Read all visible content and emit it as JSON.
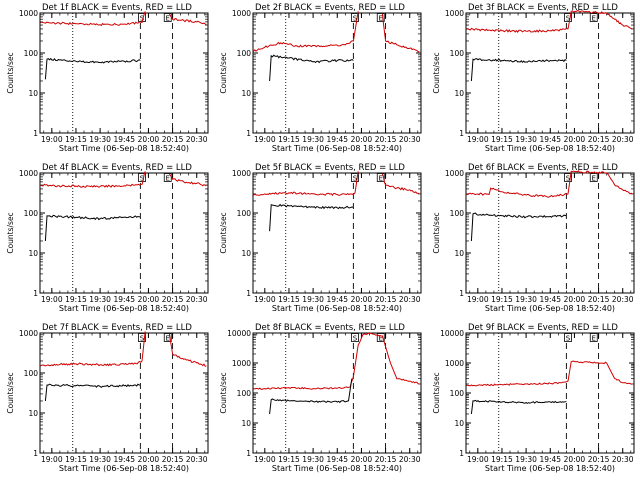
{
  "chart_data": [
    {
      "type": "line",
      "title": "Det 1f BLACK = Events, RED = LLD",
      "xlabel": "Start Time (06-Sep-08 18:52:40)",
      "ylabel": "Counts/sec",
      "scale": "log",
      "ylim": [
        1,
        1000
      ],
      "yticks": [
        "1",
        "10",
        "100",
        "1000"
      ],
      "xlim": [
        "18:52:40",
        "20:37:00"
      ],
      "xticks": [
        "19:00",
        "19:15",
        "19:30",
        "19:45",
        "20:00",
        "20:15",
        "20:30"
      ],
      "markers": [
        "S",
        "E"
      ],
      "series": [
        {
          "name": "LLD",
          "color": "#d00000",
          "x": [
            "18:53",
            "19:00",
            "19:15",
            "19:30",
            "19:45",
            "19:53",
            "19:56",
            "19:58",
            "20:01",
            "20:11",
            "20:13",
            "20:15",
            "20:22",
            "20:30",
            "20:36"
          ],
          "y": [
            580,
            560,
            540,
            510,
            530,
            560,
            580,
            1100,
            null,
            null,
            950,
            700,
            650,
            600,
            520
          ]
        },
        {
          "name": "Events",
          "color": "#000000",
          "x": [
            "18:56",
            "18:57",
            "19:15",
            "19:30",
            "19:45",
            "19:55"
          ],
          "y": [
            22,
            70,
            62,
            58,
            62,
            65
          ]
        }
      ]
    },
    {
      "type": "line",
      "title": "Det 2f BLACK = Events, RED = LLD",
      "xlabel": "Start Time (06-Sep-08 18:52:40)",
      "ylabel": "Counts/sec",
      "scale": "log",
      "ylim": [
        1,
        1000
      ],
      "yticks": [
        "1",
        "10",
        "100",
        "1000"
      ],
      "xlim": [
        "18:52:40",
        "20:37:00"
      ],
      "xticks": [
        "19:00",
        "19:15",
        "19:30",
        "19:45",
        "20:00",
        "20:15",
        "20:30"
      ],
      "markers": [
        "S",
        "E"
      ],
      "series": [
        {
          "name": "LLD",
          "color": "#d00000",
          "x": [
            "18:53",
            "19:00",
            "19:10",
            "19:20",
            "19:35",
            "19:50",
            "19:55",
            "19:58",
            "20:01",
            "20:11",
            "20:13",
            "20:15",
            "20:22",
            "20:30",
            "20:36"
          ],
          "y": [
            110,
            140,
            180,
            150,
            150,
            160,
            200,
            1100,
            null,
            null,
            950,
            200,
            160,
            130,
            110
          ]
        },
        {
          "name": "Events",
          "color": "#000000",
          "x": [
            "19:03",
            "19:04",
            "19:15",
            "19:30",
            "19:45",
            "19:55"
          ],
          "y": [
            20,
            85,
            75,
            60,
            65,
            65
          ]
        }
      ]
    },
    {
      "type": "line",
      "title": "Det 3f BLACK = Events, RED = LLD",
      "xlabel": "Start Time (06-Sep-08 18:52:40)",
      "ylabel": "Counts/sec",
      "scale": "log",
      "ylim": [
        1,
        1000
      ],
      "yticks": [
        "1",
        "10",
        "100",
        "1000"
      ],
      "xlim": [
        "18:52:40",
        "20:37:00"
      ],
      "xticks": [
        "19:00",
        "19:15",
        "19:30",
        "19:45",
        "20:00",
        "20:15",
        "20:30"
      ],
      "markers": [
        "S",
        "E"
      ],
      "series": [
        {
          "name": "LLD",
          "color": "#d00000",
          "x": [
            "18:53",
            "19:00",
            "19:15",
            "19:30",
            "19:45",
            "19:52",
            "19:56",
            "19:58",
            "20:20",
            "20:25",
            "20:30",
            "20:36"
          ],
          "y": [
            400,
            380,
            360,
            350,
            360,
            380,
            400,
            1100,
            1000,
            700,
            500,
            400
          ]
        },
        {
          "name": "Events",
          "color": "#000000",
          "x": [
            "18:56",
            "18:57",
            "19:15",
            "19:30",
            "19:45",
            "19:55"
          ],
          "y": [
            20,
            70,
            65,
            60,
            65,
            65
          ]
        }
      ]
    },
    {
      "type": "line",
      "title": "Det 4f BLACK = Events, RED = LLD",
      "xlabel": "Start Time (06-Sep-08 18:52:40)",
      "ylabel": "Counts/sec",
      "scale": "log",
      "ylim": [
        1,
        1000
      ],
      "yticks": [
        "1",
        "10",
        "100",
        "1000"
      ],
      "xlim": [
        "18:52:40",
        "20:37:00"
      ],
      "xticks": [
        "19:00",
        "19:15",
        "19:30",
        "19:45",
        "20:00",
        "20:15",
        "20:30"
      ],
      "markers": [
        "S",
        "E"
      ],
      "series": [
        {
          "name": "LLD",
          "color": "#d00000",
          "x": [
            "18:53",
            "19:00",
            "19:15",
            "19:30",
            "19:45",
            "19:53",
            "19:56",
            "19:58",
            "20:01",
            "20:11",
            "20:13",
            "20:15",
            "20:22",
            "20:30",
            "20:36"
          ],
          "y": [
            500,
            480,
            470,
            460,
            480,
            500,
            520,
            1100,
            null,
            null,
            950,
            700,
            600,
            550,
            480
          ]
        },
        {
          "name": "Events",
          "color": "#000000",
          "x": [
            "18:56",
            "18:57",
            "19:15",
            "19:30",
            "19:45",
            "19:55"
          ],
          "y": [
            20,
            85,
            78,
            72,
            78,
            80
          ]
        }
      ]
    },
    {
      "type": "line",
      "title": "Det 5f BLACK = Events, RED = LLD",
      "xlabel": "Start Time (06-Sep-08 18:52:40)",
      "ylabel": "Counts/sec",
      "scale": "log",
      "ylim": [
        1,
        1000
      ],
      "yticks": [
        "1",
        "10",
        "100",
        "1000"
      ],
      "xlim": [
        "18:52:40",
        "20:37:00"
      ],
      "xticks": [
        "19:00",
        "19:15",
        "19:30",
        "19:45",
        "20:00",
        "20:15",
        "20:30"
      ],
      "markers": [
        "S",
        "E"
      ],
      "series": [
        {
          "name": "LLD",
          "color": "#d00000",
          "x": [
            "18:53",
            "19:00",
            "19:15",
            "19:30",
            "19:45",
            "19:53",
            "19:56",
            "19:58",
            "20:01",
            "20:11",
            "20:13",
            "20:15",
            "20:22",
            "20:30",
            "20:36"
          ],
          "y": [
            280,
            300,
            320,
            300,
            290,
            300,
            320,
            1100,
            null,
            null,
            950,
            500,
            420,
            380,
            300
          ]
        },
        {
          "name": "Events",
          "color": "#000000",
          "x": [
            "19:03",
            "19:04",
            "19:15",
            "19:30",
            "19:45",
            "19:55"
          ],
          "y": [
            35,
            160,
            150,
            140,
            135,
            140
          ]
        }
      ]
    },
    {
      "type": "line",
      "title": "Det 6f BLACK = Events, RED = LLD",
      "xlabel": "Start Time (06-Sep-08 18:52:40)",
      "ylabel": "Counts/sec",
      "scale": "log",
      "ylim": [
        1,
        1000
      ],
      "yticks": [
        "1",
        "10",
        "100",
        "1000"
      ],
      "xlim": [
        "18:52:40",
        "20:37:00"
      ],
      "xticks": [
        "19:00",
        "19:15",
        "19:30",
        "19:45",
        "20:00",
        "20:15",
        "20:30"
      ],
      "markers": [
        "S",
        "E"
      ],
      "series": [
        {
          "name": "LLD",
          "color": "#d00000",
          "x": [
            "18:53",
            "19:00",
            "19:07",
            "19:08",
            "19:15",
            "19:30",
            "19:45",
            "19:52",
            "19:56",
            "19:58",
            "20:20",
            "20:25",
            "20:30",
            "20:36"
          ],
          "y": [
            300,
            300,
            290,
            420,
            340,
            280,
            260,
            280,
            300,
            1100,
            1000,
            500,
            380,
            300
          ]
        },
        {
          "name": "Events",
          "color": "#000000",
          "x": [
            "18:56",
            "18:57",
            "19:15",
            "19:30",
            "19:45",
            "19:55"
          ],
          "y": [
            20,
            95,
            85,
            80,
            82,
            85
          ]
        }
      ]
    },
    {
      "type": "line",
      "title": "Det 7f BLACK = Events, RED = LLD",
      "xlabel": "Start Time (06-Sep-08 18:52:40)",
      "ylabel": "Counts/sec",
      "scale": "log",
      "ylim": [
        1,
        1000
      ],
      "yticks": [
        "1",
        "10",
        "100",
        "1000"
      ],
      "xlim": [
        "18:52:40",
        "20:37:00"
      ],
      "xticks": [
        "19:00",
        "19:15",
        "19:30",
        "19:45",
        "20:00",
        "20:15",
        "20:30"
      ],
      "markers": [
        "S",
        "E"
      ],
      "series": [
        {
          "name": "LLD",
          "color": "#d00000",
          "x": [
            "18:53",
            "19:00",
            "19:15",
            "19:30",
            "19:45",
            "19:53",
            "19:56",
            "19:58",
            "20:01",
            "20:11",
            "20:13",
            "20:15",
            "20:22",
            "20:30",
            "20:36"
          ],
          "y": [
            150,
            160,
            170,
            160,
            165,
            170,
            200,
            1100,
            null,
            null,
            950,
            300,
            220,
            180,
            150
          ]
        },
        {
          "name": "Events",
          "color": "#000000",
          "x": [
            "18:56",
            "18:57",
            "19:15",
            "19:30",
            "19:45",
            "19:55"
          ],
          "y": [
            20,
            50,
            48,
            46,
            48,
            50
          ]
        }
      ]
    },
    {
      "type": "line",
      "title": "Det 8f BLACK = Events, RED = LLD",
      "xlabel": "Start Time (06-Sep-08 18:52:40)",
      "ylabel": "Counts/sec",
      "scale": "log",
      "ylim": [
        1,
        10000
      ],
      "yticks": [
        "1",
        "10",
        "100",
        "1000",
        "10000"
      ],
      "xlim": [
        "18:52:40",
        "20:37:00"
      ],
      "xticks": [
        "19:00",
        "19:15",
        "19:30",
        "19:45",
        "20:00",
        "20:15",
        "20:30"
      ],
      "markers": [
        "S",
        "E"
      ],
      "series": [
        {
          "name": "LLD",
          "color": "#d00000",
          "x": [
            "18:53",
            "19:00",
            "19:15",
            "19:30",
            "19:45",
            "19:53",
            "19:55",
            "19:58",
            "20:01",
            "20:05",
            "20:13",
            "20:18",
            "20:22",
            "20:30",
            "20:36"
          ],
          "y": [
            140,
            140,
            150,
            140,
            145,
            160,
            350,
            4000,
            9000,
            9500,
            8000,
            1000,
            300,
            250,
            200
          ]
        },
        {
          "name": "Events",
          "color": "#000000",
          "x": [
            "19:03",
            "19:04",
            "19:15",
            "19:30",
            "19:45",
            "19:52",
            "19:54"
          ],
          "y": [
            20,
            60,
            55,
            52,
            50,
            55,
            300
          ]
        }
      ]
    },
    {
      "type": "line",
      "title": "Det 9f BLACK = Events, RED = LLD",
      "xlabel": "Start Time (06-Sep-08 18:52:40)",
      "ylabel": "Counts/sec",
      "scale": "log",
      "ylim": [
        1,
        10000
      ],
      "yticks": [
        "1",
        "10",
        "100",
        "1000",
        "10000"
      ],
      "xlim": [
        "18:52:40",
        "20:37:00"
      ],
      "xticks": [
        "19:00",
        "19:15",
        "19:30",
        "19:45",
        "20:00",
        "20:15",
        "20:30"
      ],
      "markers": [
        "S",
        "E"
      ],
      "series": [
        {
          "name": "LLD",
          "color": "#d00000",
          "x": [
            "18:53",
            "19:00",
            "19:15",
            "19:30",
            "19:45",
            "19:52",
            "19:56",
            "19:58",
            "20:20",
            "20:25",
            "20:30",
            "20:36"
          ],
          "y": [
            180,
            180,
            190,
            200,
            210,
            220,
            250,
            1100,
            1000,
            300,
            220,
            200
          ]
        },
        {
          "name": "Events",
          "color": "#000000",
          "x": [
            "18:56",
            "18:57",
            "19:15",
            "19:30",
            "19:45",
            "19:55"
          ],
          "y": [
            20,
            55,
            50,
            48,
            50,
            52
          ]
        }
      ]
    }
  ]
}
